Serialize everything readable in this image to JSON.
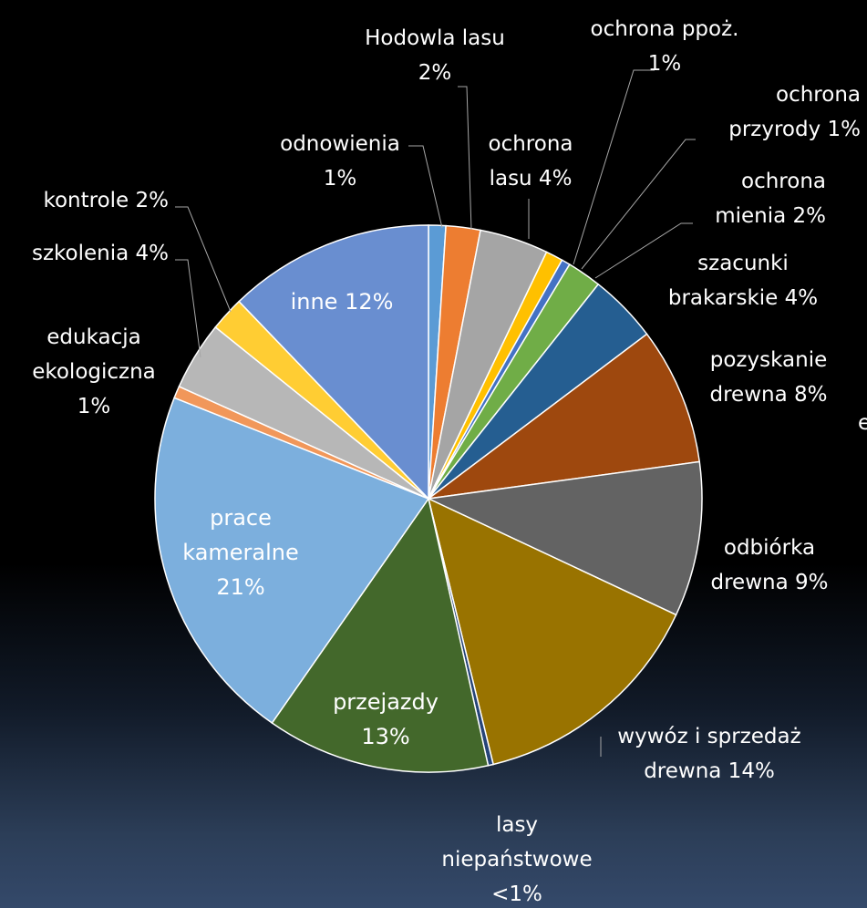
{
  "chart_data": {
    "type": "pie",
    "title": "",
    "series": [
      {
        "name": "",
        "values": []
      }
    ],
    "slices": [
      {
        "label": "odnowienia",
        "value": 1,
        "display": [
          "odnowienia",
          "1%"
        ],
        "color": "#5b9bd5"
      },
      {
        "label": "Hodowla lasu",
        "value": 2,
        "display": [
          "Hodowla lasu",
          "2%"
        ],
        "color": "#ed7d31"
      },
      {
        "label": "ochrona lasu",
        "value": 4,
        "display": [
          "ochrona",
          "lasu 4%"
        ],
        "color": "#a5a5a5"
      },
      {
        "label": "ochrona ppoż.",
        "value": 1,
        "display": [
          "ochrona ppoż.",
          "1%"
        ],
        "color": "#ffc000"
      },
      {
        "label": "ochrona przyrody",
        "value": 0.5,
        "display": [
          "ochrona",
          "przyrody 1%"
        ],
        "color": "#4472c4"
      },
      {
        "label": "ochrona mienia",
        "value": 2,
        "display": [
          "ochrona",
          "mienia 2%"
        ],
        "color": "#70ad47"
      },
      {
        "label": "szacunki brakarskie",
        "value": 4,
        "display": [
          "szacunki",
          "brakarskie 4%"
        ],
        "color": "#255e91"
      },
      {
        "label": "pozyskanie drewna",
        "value": 8,
        "display": [
          "pozyskanie",
          "drewna 8%"
        ],
        "color": "#9e480e"
      },
      {
        "label": "odbiórka drewna",
        "value": 9,
        "display": [
          "odbiórka",
          "drewna 9%"
        ],
        "color": "#636363"
      },
      {
        "label": "wywóz i sprzedaż drewna",
        "value": 14,
        "display": [
          "wywóz i sprzedaż",
          "drewna 14%"
        ],
        "color": "#997300"
      },
      {
        "label": "lasy niepaństwowe",
        "value": 0.3,
        "display": [
          "lasy",
          "niepaństwowe",
          "<1%"
        ],
        "color": "#264478"
      },
      {
        "label": "przejazdy",
        "value": 13,
        "display": [
          "przejazdy",
          "13%"
        ],
        "color": "#43682b"
      },
      {
        "label": "prace kameralne",
        "value": 21,
        "display": [
          "prace",
          "kameralne",
          "21%"
        ],
        "color": "#7cafdd"
      },
      {
        "label": "edukacja ekologiczna",
        "value": 0.7,
        "display": [
          "edukacja",
          "ekologiczna",
          "1%"
        ],
        "color": "#f1975a"
      },
      {
        "label": "szkolenia",
        "value": 4,
        "display": [
          "szkolenia 4%"
        ],
        "color": "#b7b7b7"
      },
      {
        "label": "kontrole",
        "value": 2,
        "display": [
          "kontrole 2%"
        ],
        "color": "#ffcd33"
      },
      {
        "label": "inne",
        "value": 12,
        "display": [
          "inne 12%"
        ],
        "color": "#698ed0"
      }
    ],
    "clipped_text": "e"
  }
}
